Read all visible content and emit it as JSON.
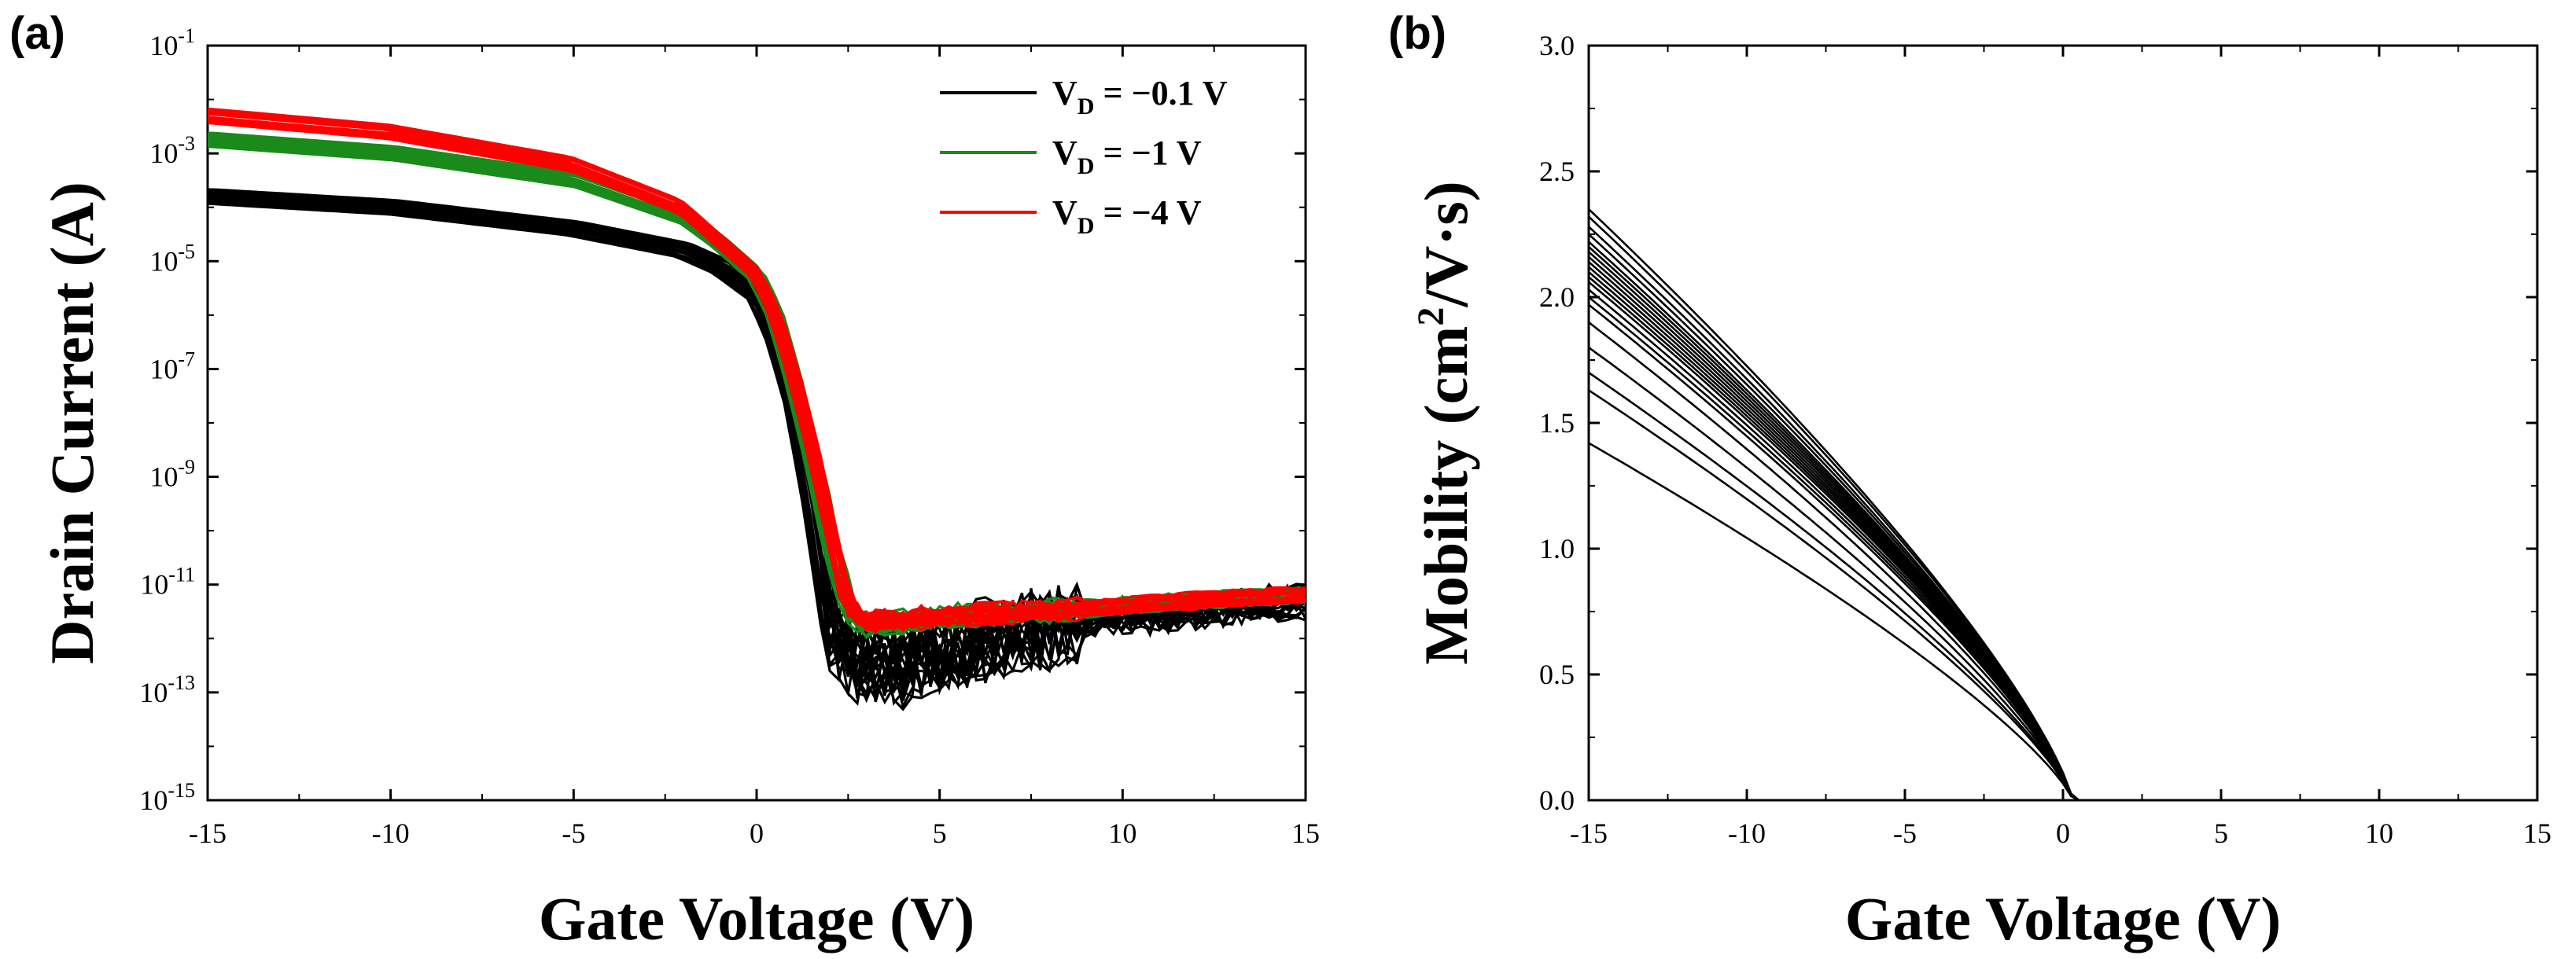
{
  "chart_data": [
    {
      "panel_label": "(a)",
      "type": "line",
      "xlabel": "Gate Voltage (V)",
      "ylabel": "Drain Current (A)",
      "y_scale": "log",
      "xlim": [
        -15,
        15
      ],
      "ylim_exp": [
        -15,
        -1
      ],
      "x_ticks": [
        "-15",
        "-10",
        "-5",
        "0",
        "5",
        "10",
        "15"
      ],
      "y_ticks": [
        {
          "base": "10",
          "exp": "-15"
        },
        {
          "base": "10",
          "exp": "-13"
        },
        {
          "base": "10",
          "exp": "-11"
        },
        {
          "base": "10",
          "exp": "-9"
        },
        {
          "base": "10",
          "exp": "-7"
        },
        {
          "base": "10",
          "exp": "-5"
        },
        {
          "base": "10",
          "exp": "-3"
        },
        {
          "base": "10",
          "exp": "-1"
        }
      ],
      "legend": {
        "placement": "top-right",
        "entries": [
          {
            "prefix": "V",
            "sub": "D",
            "suffix": " = −0.1 V",
            "color": "#000000"
          },
          {
            "prefix": "V",
            "sub": "D",
            "suffix": " = −1 V",
            "color": "#1a8a1a"
          },
          {
            "prefix": "V",
            "sub": "D",
            "suffix": " = −4 V",
            "color": "#ff0000"
          }
        ]
      },
      "series": [
        {
          "name": "VD = -0.1 V",
          "color": "#000000",
          "x": [
            -15,
            -10,
            -5,
            -2,
            -1,
            0,
            0.5,
            1,
            1.5,
            2,
            2.5,
            3,
            4,
            5,
            6,
            8,
            10,
            12,
            15
          ],
          "log10_y": [
            -3.8,
            -4.0,
            -4.4,
            -4.8,
            -5.1,
            -5.6,
            -6.4,
            -7.6,
            -9.5,
            -11.8,
            -12.3,
            -12.5,
            -12.5,
            -12.3,
            -12.1,
            -11.8,
            -11.6,
            -11.5,
            -11.3
          ]
        },
        {
          "name": "VD = -1 V",
          "color": "#1a8a1a",
          "x": [
            -15,
            -10,
            -5,
            -2,
            -1,
            0,
            0.5,
            1,
            1.5,
            2,
            2.5,
            3,
            5,
            8,
            10,
            12,
            15
          ],
          "log10_y": [
            -2.75,
            -3.0,
            -3.5,
            -4.2,
            -4.7,
            -5.3,
            -6.0,
            -7.2,
            -8.6,
            -10.2,
            -11.5,
            -11.8,
            -11.6,
            -11.5,
            -11.4,
            -11.3,
            -11.2
          ]
        },
        {
          "name": "VD = -4 V",
          "color": "#ff0000",
          "x": [
            -15,
            -10,
            -5,
            -2,
            -1,
            0,
            0.5,
            1,
            1.5,
            2,
            2.5,
            3,
            5,
            8,
            10,
            12,
            15
          ],
          "log10_y": [
            -2.3,
            -2.6,
            -3.2,
            -4.0,
            -4.6,
            -5.2,
            -5.9,
            -7.0,
            -8.3,
            -9.8,
            -11.3,
            -11.7,
            -11.6,
            -11.5,
            -11.4,
            -11.3,
            -11.2
          ]
        }
      ]
    },
    {
      "panel_label": "(b)",
      "type": "line",
      "xlabel": "Gate Voltage (V)",
      "ylabel": "Mobility (cm2/V·s)",
      "ylabel_parts": {
        "pre": "Mobility (cm",
        "sup": "2",
        "post": "/V·s)"
      },
      "xlim": [
        -15,
        15
      ],
      "ylim": [
        0,
        3
      ],
      "x_ticks": [
        "-15",
        "-10",
        "-5",
        "0",
        "5",
        "10",
        "15"
      ],
      "y_ticks": [
        "0.0",
        "0.5",
        "1.0",
        "1.5",
        "2.0",
        "2.5",
        "3.0"
      ],
      "series_color": "#000000",
      "series_start_values": [
        2.35,
        2.32,
        2.28,
        2.25,
        2.22,
        2.2,
        2.18,
        2.16,
        2.14,
        2.12,
        2.1,
        2.08,
        2.06,
        2.03,
        2.0,
        1.97,
        1.9,
        1.8,
        1.7,
        1.63,
        1.42
      ],
      "zero_crossing_v": 0.3
    }
  ]
}
